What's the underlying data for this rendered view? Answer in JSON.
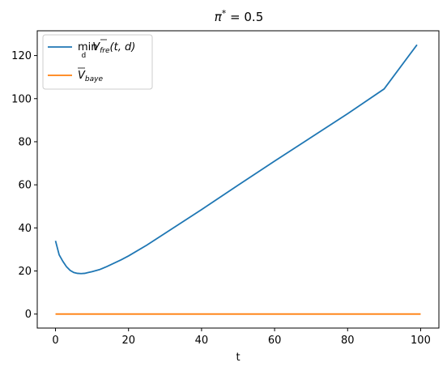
{
  "chart_data": {
    "type": "line",
    "title": "π* = 0.5",
    "xlabel": "t",
    "ylabel": "",
    "xlim": [
      -5,
      105
    ],
    "ylim": [
      -6.5,
      131.5
    ],
    "xticks": [
      0,
      20,
      40,
      60,
      80,
      100
    ],
    "yticks": [
      0,
      20,
      40,
      60,
      80,
      100,
      120
    ],
    "grid": false,
    "legend_position": "top-left",
    "series": [
      {
        "name": "min_d V̄_fre(t,d)",
        "color": "#1f77b4",
        "x": [
          0,
          1,
          2,
          3,
          4,
          5,
          6,
          7,
          8,
          9,
          10,
          12,
          14,
          16,
          18,
          20,
          25,
          30,
          40,
          50,
          60,
          70,
          80,
          90,
          99
        ],
        "y": [
          34,
          27.5,
          24.5,
          22,
          20.3,
          19.3,
          18.9,
          18.8,
          18.9,
          19.3,
          19.7,
          20.6,
          22,
          23.6,
          25.2,
          27,
          32,
          37.5,
          48.5,
          59.8,
          71,
          82,
          93,
          104.5,
          125
        ]
      },
      {
        "name": "V̄_baye",
        "color": "#ff7f0e",
        "x": [
          0,
          100
        ],
        "y": [
          0,
          0
        ]
      }
    ]
  }
}
